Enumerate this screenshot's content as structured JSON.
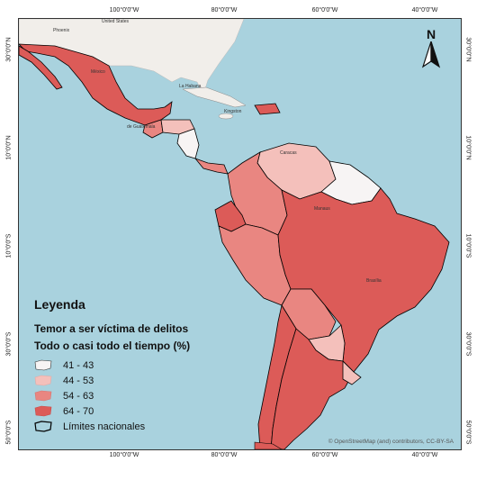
{
  "colors": {
    "sea": "#a9d2de",
    "land_outside": "#f1eeea",
    "class_41_43": "#f7f4f4",
    "class_44_53": "#f4c0bb",
    "class_54_63": "#e98681",
    "class_64_70": "#dc5b58",
    "border": "#000000"
  },
  "axes": {
    "top": [
      "100°0'0\"W",
      "80°0'0\"W",
      "60°0'0\"W",
      "40°0'0\"W"
    ],
    "bottom": [
      "100°0'0\"W",
      "80°0'0\"W",
      "60°0'0\"W",
      "40°0'0\"W"
    ],
    "left": [
      "30°0'0\"N",
      "10°0'0\"N",
      "10°0'0\"S",
      "30°0'0\"S",
      "50°0'0\"S"
    ],
    "right": [
      "30°0'0\"N",
      "10°0'0\"N",
      "10°0'0\"S",
      "30°0'0\"S",
      "50°0'0\"S"
    ]
  },
  "north_arrow": {
    "letter": "N",
    "icon": "north-arrow-icon"
  },
  "legend": {
    "title": "Leyenda",
    "subtitle1": "Temor a ser víctima de delitos",
    "subtitle2": "Todo o casi todo el tiempo (%)",
    "classes": [
      {
        "label": "41 - 43",
        "color_key": "class_41_43"
      },
      {
        "label": "44 - 53",
        "color_key": "class_44_53"
      },
      {
        "label": "54 - 63",
        "color_key": "class_54_63"
      },
      {
        "label": "64 - 70",
        "color_key": "class_64_70"
      }
    ],
    "border_label": "Límites nacionales"
  },
  "place_labels": {
    "united_states": "United States",
    "phoenix": "Phoenix",
    "mexico": "México",
    "la_habana": "La Habana",
    "kingston": "Kingston",
    "guatemala": "de Guatemala",
    "caracas": "Caracas",
    "manaus": "Manaus",
    "brasilia": "Brasília"
  },
  "attribution": "© OpenStreetMap (and) contributors, CC-BY-SA"
}
